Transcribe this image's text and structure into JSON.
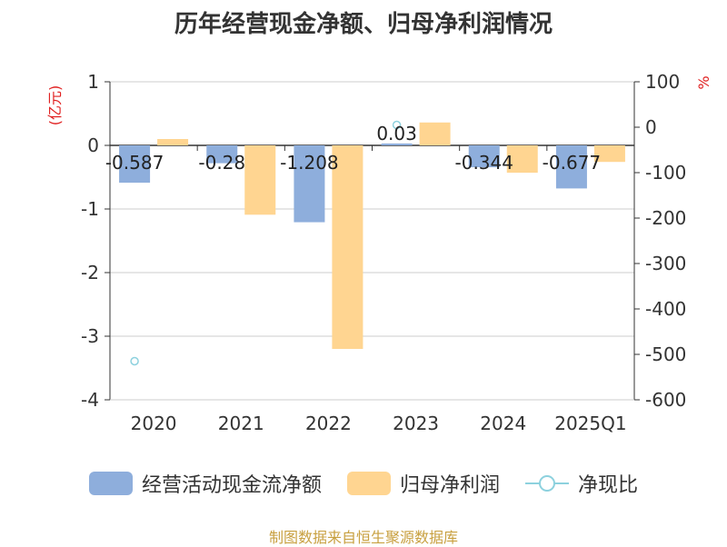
{
  "title": "历年经营现金净额、归母净利润情况",
  "source": "制图数据来自恒生聚源数据库",
  "chart_data": {
    "type": "bar",
    "title": "历年经营现金净额、归母净利润情况",
    "categories": [
      "2020",
      "2021",
      "2022",
      "2023",
      "2024",
      "2025Q1"
    ],
    "y_left": {
      "label": "(亿元)",
      "ylim": [
        -4,
        1
      ],
      "ticks": [
        1,
        0,
        -1,
        -2,
        -3,
        -4
      ]
    },
    "y_right": {
      "label": "%",
      "ylim": [
        -600,
        100
      ],
      "ticks": [
        100,
        0,
        -100,
        -200,
        -300,
        -400,
        -500,
        -600
      ]
    },
    "series": [
      {
        "name": "经营活动现金流净额",
        "type": "bar",
        "axis": "left",
        "color": "#8eaedc",
        "values": [
          -0.587,
          -0.28,
          -1.208,
          0.03,
          -0.344,
          -0.677
        ],
        "labels": [
          "-0.587",
          "-0.28",
          "-1.208",
          "0.03",
          "-0.344",
          "-0.677"
        ]
      },
      {
        "name": "归母净利润",
        "type": "bar",
        "axis": "left",
        "color": "#ffd591",
        "values": [
          0.1,
          -1.09,
          -3.2,
          0.36,
          -0.43,
          -0.26
        ]
      },
      {
        "name": "净现比",
        "type": "scatter",
        "axis": "right",
        "color": "#8dd1de",
        "values": [
          -515,
          null,
          null,
          5,
          null,
          null
        ]
      }
    ],
    "grid": true,
    "legend": "bottom"
  }
}
